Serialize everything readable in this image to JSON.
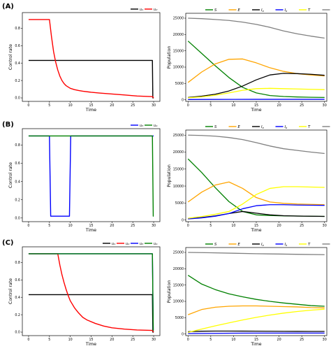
{
  "figure": {
    "rows": [
      {
        "label": "(A)",
        "panels": [
          0,
          1
        ]
      },
      {
        "label": "(B)",
        "panels": [
          2,
          3
        ]
      },
      {
        "label": "(C)",
        "panels": [
          4,
          5
        ]
      }
    ]
  },
  "colors": {
    "u1": "#000000",
    "u2": "#ff0000",
    "u3": "#0000ff",
    "u4": "#008000",
    "S": "#008000",
    "E": "#ffa500",
    "Ia": "#000000",
    "Ib": "#0000ff",
    "T": "#ffff00",
    "N": "#808080"
  },
  "chart_data": [
    {
      "type": "line",
      "xlabel": "Time",
      "ylabel": "Control rate",
      "xlim": [
        -1.5,
        31.5
      ],
      "ylim": [
        -0.04,
        0.98
      ],
      "xticks": [
        0,
        5,
        10,
        15,
        20,
        25,
        30
      ],
      "yticks": [
        0.0,
        0.2,
        0.4,
        0.6,
        0.8
      ],
      "xtick_labels": [
        "0",
        "5",
        "10",
        "15",
        "20",
        "25",
        "30"
      ],
      "ytick_labels": [
        "0.0",
        "0.2",
        "0.4",
        "0.6",
        "0.8"
      ],
      "legend": "top-right",
      "series": [
        {
          "name": "u₁",
          "key": "u1",
          "x": [
            0,
            29.7,
            29.8,
            30
          ],
          "y": [
            0.43,
            0.43,
            0.0,
            0.0
          ]
        },
        {
          "name": "u₂",
          "key": "u2",
          "x": [
            0,
            5.0,
            5.5,
            6,
            6.5,
            7,
            7.5,
            8,
            8.5,
            9,
            10,
            11,
            12,
            13,
            15,
            17,
            20,
            23,
            26,
            29.7,
            30
          ],
          "y": [
            0.9,
            0.9,
            0.7,
            0.53,
            0.41,
            0.32,
            0.25,
            0.2,
            0.165,
            0.14,
            0.11,
            0.095,
            0.085,
            0.077,
            0.065,
            0.056,
            0.045,
            0.034,
            0.022,
            0.015,
            0.0
          ]
        }
      ]
    },
    {
      "type": "line",
      "xlabel": "Time",
      "ylabel": "Population",
      "xlim": [
        -0.5,
        30.5
      ],
      "ylim": [
        -500,
        26500
      ],
      "xticks": [
        0,
        5,
        10,
        15,
        20,
        25,
        30
      ],
      "yticks": [
        0,
        5000,
        10000,
        15000,
        20000,
        25000
      ],
      "xtick_labels": [
        "0",
        "5",
        "10",
        "15",
        "20",
        "25",
        "30"
      ],
      "ytick_labels": [
        "0",
        "5000",
        "10000",
        "15000",
        "20000",
        "25000"
      ],
      "legend": "top",
      "series": [
        {
          "name": "S",
          "key": "S",
          "x": [
            0,
            3,
            6,
            9,
            12,
            15,
            18,
            21,
            24,
            27,
            30
          ],
          "y": [
            18000,
            14200,
            10400,
            6800,
            3800,
            2100,
            1300,
            1000,
            850,
            760,
            700
          ]
        },
        {
          "name": "E",
          "key": "E",
          "x": [
            0,
            3,
            6,
            9,
            12,
            15,
            18,
            21,
            24,
            27,
            30
          ],
          "y": [
            5300,
            8500,
            11000,
            12400,
            12500,
            11300,
            9800,
            8700,
            8000,
            7600,
            7300
          ]
        },
        {
          "name": "I_a",
          "key": "Ia",
          "x": [
            0,
            3,
            6,
            9,
            12,
            15,
            18,
            21,
            24,
            27,
            30
          ],
          "y": [
            700,
            1100,
            1700,
            2700,
            4200,
            6100,
            7600,
            8100,
            8000,
            7800,
            7500
          ]
        },
        {
          "name": "I_b",
          "key": "Ib",
          "x": [
            0,
            5,
            10,
            15,
            20,
            25,
            30
          ],
          "y": [
            80,
            100,
            120,
            130,
            130,
            130,
            130
          ]
        },
        {
          "name": "T",
          "key": "T",
          "x": [
            0,
            3,
            6,
            9,
            12,
            15,
            18,
            21,
            24,
            27,
            30
          ],
          "y": [
            600,
            900,
            1400,
            2100,
            2900,
            3400,
            3500,
            3400,
            3300,
            3200,
            3100
          ]
        },
        {
          "name": "N",
          "key": "N",
          "x": [
            0,
            3,
            6,
            9,
            12,
            15,
            18,
            21,
            24,
            27,
            30
          ],
          "y": [
            25000,
            24850,
            24600,
            24300,
            23800,
            23100,
            22200,
            21100,
            20200,
            19500,
            18900
          ]
        }
      ]
    },
    {
      "type": "line",
      "xlabel": "Time",
      "ylabel": "Control rate",
      "xlim": [
        -1.5,
        31.5
      ],
      "ylim": [
        -0.04,
        0.98
      ],
      "xticks": [
        0,
        5,
        10,
        15,
        20,
        25,
        30
      ],
      "yticks": [
        0.0,
        0.2,
        0.4,
        0.6,
        0.8
      ],
      "xtick_labels": [
        "0",
        "5",
        "10",
        "15",
        "20",
        "25",
        "30"
      ],
      "ytick_labels": [
        "0.0",
        "0.2",
        "0.4",
        "0.6",
        "0.8"
      ],
      "legend": "top-right",
      "series": [
        {
          "name": "u₃",
          "key": "u3",
          "x": [
            0,
            5.0,
            5.3,
            9.8,
            10.1,
            30
          ],
          "y": [
            0.9,
            0.9,
            0.02,
            0.02,
            0.9,
            0.9
          ]
        },
        {
          "name": "u₄",
          "key": "u4",
          "x": [
            0,
            29.7,
            29.9,
            30
          ],
          "y": [
            0.9,
            0.9,
            0.02,
            0.02
          ]
        }
      ]
    },
    {
      "type": "line",
      "xlabel": "Time",
      "ylabel": "Population",
      "xlim": [
        -0.5,
        30.5
      ],
      "ylim": [
        -500,
        26500
      ],
      "xticks": [
        0,
        5,
        10,
        15,
        20,
        25,
        30
      ],
      "yticks": [
        0,
        5000,
        10000,
        15000,
        20000,
        25000
      ],
      "xtick_labels": [
        "0",
        "5",
        "10",
        "15",
        "20",
        "25",
        "30"
      ],
      "ytick_labels": [
        "0",
        "5000",
        "10000",
        "15000",
        "20000",
        "25000"
      ],
      "legend": "top",
      "series": [
        {
          "name": "S",
          "key": "S",
          "x": [
            0,
            3,
            6,
            9,
            12,
            15,
            18,
            21,
            24,
            27,
            30
          ],
          "y": [
            18000,
            14000,
            9500,
            5400,
            2500,
            1500,
            1300,
            1200,
            1150,
            1100,
            1050
          ]
        },
        {
          "name": "E",
          "key": "E",
          "x": [
            0,
            3,
            6,
            9,
            12,
            15,
            18,
            21,
            24,
            27,
            30
          ],
          "y": [
            5300,
            8200,
            10300,
            11200,
            9300,
            6600,
            5300,
            4900,
            4700,
            4600,
            4500
          ]
        },
        {
          "name": "I_a",
          "key": "Ia",
          "x": [
            0,
            3,
            6,
            9,
            12,
            15,
            18,
            21,
            24,
            27,
            30
          ],
          "y": [
            400,
            700,
            1200,
            1900,
            2500,
            2000,
            1500,
            1250,
            1150,
            1100,
            1050
          ]
        },
        {
          "name": "I_b",
          "key": "Ib",
          "x": [
            0,
            3,
            6,
            9,
            12,
            15,
            18,
            21,
            24,
            27,
            30
          ],
          "y": [
            300,
            600,
            1100,
            1900,
            3300,
            4200,
            4500,
            4500,
            4400,
            4350,
            4300
          ]
        },
        {
          "name": "T",
          "key": "T",
          "x": [
            0,
            3,
            6,
            9,
            12,
            15,
            18,
            21,
            24,
            27,
            30
          ],
          "y": [
            500,
            1000,
            1700,
            2500,
            4700,
            7500,
            9300,
            9800,
            9800,
            9700,
            9600
          ]
        },
        {
          "name": "N",
          "key": "N",
          "x": [
            0,
            3,
            6,
            9,
            12,
            15,
            18,
            21,
            24,
            27,
            30
          ],
          "y": [
            25000,
            24900,
            24700,
            24300,
            23700,
            22800,
            21800,
            21000,
            20500,
            20000,
            19600
          ]
        }
      ]
    },
    {
      "type": "line",
      "xlabel": "Time",
      "ylabel": "Control rate",
      "xlim": [
        -1.5,
        31.5
      ],
      "ylim": [
        -0.04,
        0.98
      ],
      "xticks": [
        0,
        5,
        10,
        15,
        20,
        25,
        30
      ],
      "yticks": [
        0.0,
        0.2,
        0.4,
        0.6,
        0.8
      ],
      "xtick_labels": [
        "0",
        "5",
        "10",
        "15",
        "20",
        "25",
        "30"
      ],
      "ytick_labels": [
        "0.0",
        "0.2",
        "0.4",
        "0.6",
        "0.8"
      ],
      "legend": "top-right",
      "series": [
        {
          "name": "u₁",
          "key": "u1",
          "x": [
            0,
            29.7,
            29.8,
            30
          ],
          "y": [
            0.43,
            0.43,
            0.0,
            0.0
          ]
        },
        {
          "name": "u₂",
          "key": "u2",
          "x": [
            0,
            7.0,
            7.5,
            8,
            8.5,
            9,
            9.5,
            10,
            11,
            12,
            13,
            14,
            16,
            18,
            20,
            23,
            26,
            29.7,
            30
          ],
          "y": [
            0.9,
            0.9,
            0.77,
            0.66,
            0.57,
            0.49,
            0.42,
            0.36,
            0.28,
            0.22,
            0.17,
            0.14,
            0.1,
            0.07,
            0.05,
            0.035,
            0.025,
            0.02,
            0.0
          ]
        },
        {
          "name": "u₃",
          "key": "u3",
          "x": [
            0,
            29.7,
            29.9,
            30
          ],
          "y": [
            0.9,
            0.9,
            0.02,
            0.02
          ]
        },
        {
          "name": "u₄",
          "key": "u4",
          "x": [
            0,
            29.7,
            29.9,
            30
          ],
          "y": [
            0.9,
            0.9,
            0.02,
            0.02
          ]
        }
      ]
    },
    {
      "type": "line",
      "xlabel": "Time",
      "ylabel": "Population",
      "xlim": [
        -0.5,
        30.5
      ],
      "ylim": [
        -500,
        26500
      ],
      "xticks": [
        0,
        5,
        10,
        15,
        20,
        25,
        30
      ],
      "yticks": [
        0,
        5000,
        10000,
        15000,
        20000,
        25000
      ],
      "xtick_labels": [
        "0",
        "5",
        "10",
        "15",
        "20",
        "25",
        "30"
      ],
      "ytick_labels": [
        "0",
        "5000",
        "10000",
        "15000",
        "20000",
        "25000"
      ],
      "legend": "top",
      "series": [
        {
          "name": "S",
          "key": "S",
          "x": [
            0,
            3,
            6,
            9,
            12,
            15,
            18,
            21,
            24,
            27,
            30
          ],
          "y": [
            18000,
            15300,
            13600,
            12300,
            11400,
            10600,
            10000,
            9500,
            9100,
            8700,
            8500
          ]
        },
        {
          "name": "E",
          "key": "E",
          "x": [
            0,
            3,
            6,
            9,
            12,
            15,
            18,
            21,
            24,
            27,
            30
          ],
          "y": [
            5900,
            7500,
            8200,
            8500,
            8600,
            8600,
            8500,
            8400,
            8300,
            8100,
            8000
          ]
        },
        {
          "name": "I_a",
          "key": "Ia",
          "x": [
            0,
            3,
            6,
            9,
            12,
            15,
            18,
            21,
            24,
            27,
            30
          ],
          "y": [
            700,
            850,
            900,
            900,
            880,
            860,
            840,
            820,
            800,
            790,
            780
          ]
        },
        {
          "name": "I_b",
          "key": "Ib",
          "x": [
            0,
            5,
            10,
            15,
            20,
            25,
            30
          ],
          "y": [
            150,
            200,
            250,
            270,
            280,
            280,
            280
          ]
        },
        {
          "name": "T",
          "key": "T",
          "x": [
            0,
            3,
            6,
            9,
            12,
            15,
            18,
            21,
            24,
            27,
            30
          ],
          "y": [
            500,
            1500,
            2500,
            3400,
            4300,
            5100,
            5800,
            6400,
            6900,
            7300,
            7600
          ]
        },
        {
          "name": "N",
          "key": "N",
          "x": [
            0,
            5,
            10,
            15,
            20,
            25,
            30
          ],
          "y": [
            25000,
            24900,
            24750,
            24600,
            24500,
            24400,
            24300
          ]
        }
      ]
    }
  ]
}
